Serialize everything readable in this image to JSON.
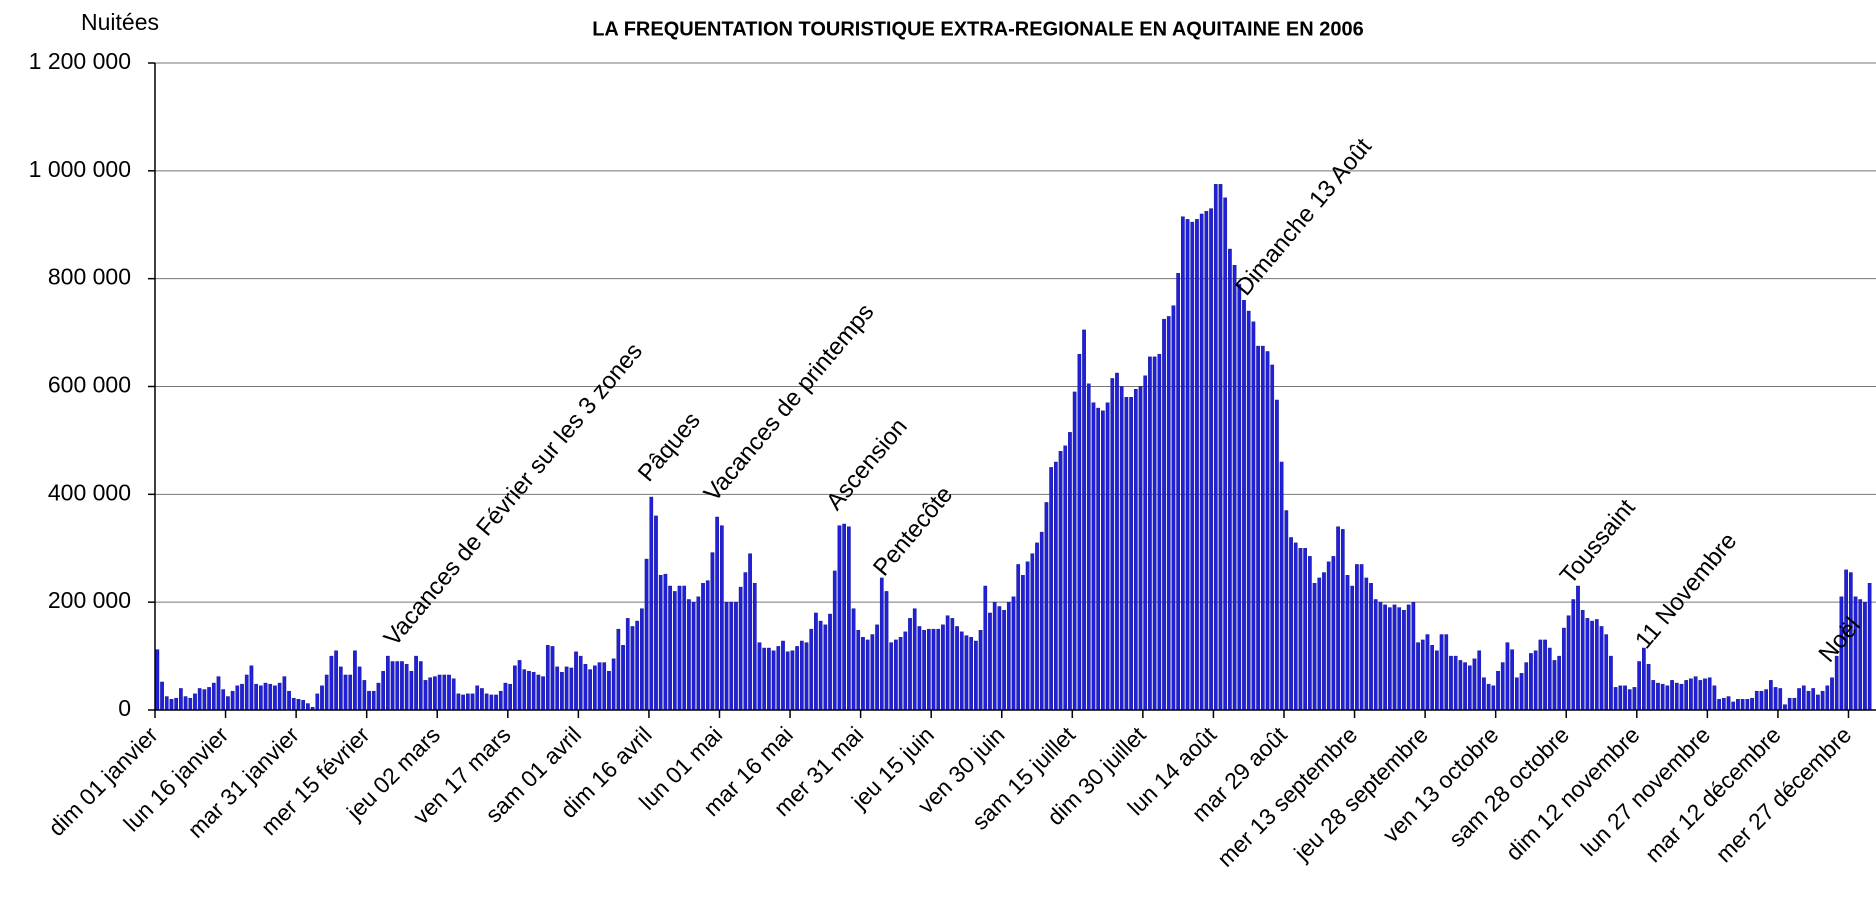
{
  "chart_data": {
    "type": "bar",
    "title": "LA FREQUENTATION TOURISTIQUE EXTRA-REGIONALE EN AQUITAINE EN 2006",
    "y_label": "Nuitées",
    "color": "#2020dc",
    "grid": true,
    "ylim": [
      0,
      1200000
    ],
    "yticks": [
      0,
      {
        "value": 200000,
        "label": "200 000"
      },
      {
        "value": 400000,
        "label": "400 000"
      },
      {
        "value": 600000,
        "label": "600 000"
      },
      {
        "value": 800000,
        "label": "800 000"
      },
      {
        "value": 1000000,
        "label": "1 000 000"
      },
      {
        "value": 1200000,
        "label": "1 200 000"
      }
    ],
    "annotations": [
      {
        "text": "Vacances de Février sur les 3 zones",
        "category_index": 51
      },
      {
        "text": "Pâques",
        "category_index": 105
      },
      {
        "text": "Vacances de printemps",
        "category_index": 119
      },
      {
        "text": "Ascension",
        "category_index": 145
      },
      {
        "text": "Pentecôte",
        "category_index": 155
      },
      {
        "text": "Dimanche 13 Août",
        "category_index": 232
      },
      {
        "text": "Toussaint",
        "category_index": 301
      },
      {
        "text": "11 Novembre",
        "category_index": 317
      },
      {
        "text": "Noël",
        "category_index": 356
      }
    ],
    "categories": [
      "dim 01 janvier",
      null,
      null,
      null,
      null,
      null,
      null,
      null,
      null,
      null,
      null,
      null,
      null,
      null,
      null,
      "lun 16 janvier",
      null,
      null,
      null,
      null,
      null,
      null,
      null,
      null,
      null,
      null,
      null,
      null,
      null,
      null,
      "mar 31 janvier",
      null,
      null,
      null,
      null,
      null,
      null,
      null,
      null,
      null,
      null,
      null,
      null,
      null,
      null,
      "mer 15 février",
      null,
      null,
      null,
      null,
      null,
      null,
      null,
      null,
      null,
      null,
      null,
      null,
      null,
      null,
      "jeu 02 mars",
      null,
      null,
      null,
      null,
      null,
      null,
      null,
      null,
      null,
      null,
      null,
      null,
      null,
      null,
      "ven 17 mars",
      null,
      null,
      null,
      null,
      null,
      null,
      null,
      null,
      null,
      null,
      null,
      null,
      null,
      null,
      "sam 01 avril",
      null,
      null,
      null,
      null,
      null,
      null,
      null,
      null,
      null,
      null,
      null,
      null,
      null,
      null,
      "dim 16 avril",
      null,
      null,
      null,
      null,
      null,
      null,
      null,
      null,
      null,
      null,
      null,
      null,
      null,
      null,
      "lun 01 mai",
      null,
      null,
      null,
      null,
      null,
      null,
      null,
      null,
      null,
      null,
      null,
      null,
      null,
      null,
      "mar 16 mai",
      null,
      null,
      null,
      null,
      null,
      null,
      null,
      null,
      null,
      null,
      null,
      null,
      null,
      null,
      "mer 31 mai",
      null,
      null,
      null,
      null,
      null,
      null,
      null,
      null,
      null,
      null,
      null,
      null,
      null,
      null,
      "jeu 15 juin",
      null,
      null,
      null,
      null,
      null,
      null,
      null,
      null,
      null,
      null,
      null,
      null,
      null,
      null,
      "ven 30 juin",
      null,
      null,
      null,
      null,
      null,
      null,
      null,
      null,
      null,
      null,
      null,
      null,
      null,
      null,
      "sam 15 juillet",
      null,
      null,
      null,
      null,
      null,
      null,
      null,
      null,
      null,
      null,
      null,
      null,
      null,
      null,
      "dim 30 juillet",
      null,
      null,
      null,
      null,
      null,
      null,
      null,
      null,
      null,
      null,
      null,
      null,
      null,
      null,
      "lun 14 août",
      null,
      null,
      null,
      null,
      null,
      null,
      null,
      null,
      null,
      null,
      null,
      null,
      null,
      null,
      "mar 29 août",
      null,
      null,
      null,
      null,
      null,
      null,
      null,
      null,
      null,
      null,
      null,
      null,
      null,
      null,
      "mer 13 septembre",
      null,
      null,
      null,
      null,
      null,
      null,
      null,
      null,
      null,
      null,
      null,
      null,
      null,
      null,
      "jeu 28 septembre",
      null,
      null,
      null,
      null,
      null,
      null,
      null,
      null,
      null,
      null,
      null,
      null,
      null,
      null,
      "ven 13 octobre",
      null,
      null,
      null,
      null,
      null,
      null,
      null,
      null,
      null,
      null,
      null,
      null,
      null,
      null,
      "sam 28 octobre",
      null,
      null,
      null,
      null,
      null,
      null,
      null,
      null,
      null,
      null,
      null,
      null,
      null,
      null,
      "dim 12 novembre",
      null,
      null,
      null,
      null,
      null,
      null,
      null,
      null,
      null,
      null,
      null,
      null,
      null,
      null,
      "lun 27 novembre",
      null,
      null,
      null,
      null,
      null,
      null,
      null,
      null,
      null,
      null,
      null,
      null,
      null,
      null,
      "mar 12 décembre",
      null,
      null,
      null,
      null,
      null,
      null,
      null,
      null,
      null,
      null,
      null,
      null,
      null,
      null,
      "mer 27 décembre",
      null,
      null,
      null,
      null
    ],
    "values": [
      112000,
      52000,
      25000,
      20000,
      22000,
      40000,
      25000,
      22000,
      30000,
      40000,
      38000,
      42000,
      50000,
      62000,
      38000,
      25000,
      35000,
      45000,
      48000,
      65000,
      82000,
      48000,
      45000,
      50000,
      48000,
      45000,
      50000,
      62000,
      35000,
      22000,
      20000,
      18000,
      12000,
      5000,
      30000,
      45000,
      65000,
      100000,
      110000,
      80000,
      65000,
      65000,
      110000,
      80000,
      55000,
      35000,
      35000,
      50000,
      72000,
      100000,
      90000,
      90000,
      90000,
      85000,
      72000,
      100000,
      90000,
      55000,
      60000,
      62000,
      65000,
      65000,
      65000,
      58000,
      30000,
      28000,
      30000,
      30000,
      45000,
      40000,
      30000,
      28000,
      28000,
      35000,
      50000,
      48000,
      82000,
      92000,
      75000,
      72000,
      70000,
      65000,
      62000,
      120000,
      118000,
      80000,
      70000,
      80000,
      78000,
      108000,
      100000,
      85000,
      75000,
      82000,
      88000,
      88000,
      72000,
      95000,
      150000,
      120000,
      170000,
      155000,
      165000,
      188000,
      280000,
      395000,
      360000,
      250000,
      252000,
      230000,
      220000,
      230000,
      230000,
      205000,
      200000,
      210000,
      235000,
      240000,
      292000,
      358000,
      342000,
      200000,
      200000,
      200000,
      228000,
      255000,
      290000,
      235000,
      125000,
      115000,
      115000,
      110000,
      118000,
      128000,
      108000,
      110000,
      118000,
      128000,
      125000,
      150000,
      180000,
      165000,
      158000,
      178000,
      258000,
      342000,
      345000,
      340000,
      188000,
      148000,
      135000,
      130000,
      140000,
      158000,
      245000,
      220000,
      125000,
      130000,
      135000,
      145000,
      170000,
      188000,
      155000,
      148000,
      150000,
      150000,
      150000,
      158000,
      175000,
      170000,
      155000,
      145000,
      138000,
      135000,
      128000,
      148000,
      230000,
      180000,
      200000,
      192000,
      185000,
      200000,
      210000,
      270000,
      250000,
      275000,
      290000,
      310000,
      330000,
      385000,
      450000,
      460000,
      480000,
      490000,
      515000,
      590000,
      660000,
      705000,
      605000,
      570000,
      560000,
      555000,
      570000,
      615000,
      625000,
      600000,
      580000,
      580000,
      595000,
      600000,
      620000,
      655000,
      655000,
      660000,
      725000,
      730000,
      750000,
      810000,
      915000,
      910000,
      905000,
      910000,
      920000,
      925000,
      930000,
      975000,
      975000,
      950000,
      855000,
      825000,
      790000,
      760000,
      740000,
      720000,
      675000,
      675000,
      665000,
      640000,
      575000,
      460000,
      370000,
      320000,
      310000,
      300000,
      300000,
      285000,
      235000,
      245000,
      255000,
      275000,
      285000,
      340000,
      335000,
      250000,
      230000,
      270000,
      270000,
      245000,
      235000,
      205000,
      200000,
      195000,
      190000,
      195000,
      190000,
      185000,
      195000,
      200000,
      125000,
      130000,
      140000,
      120000,
      110000,
      140000,
      140000,
      100000,
      100000,
      92000,
      88000,
      82000,
      95000,
      110000,
      60000,
      48000,
      45000,
      72000,
      88000,
      125000,
      112000,
      60000,
      68000,
      88000,
      105000,
      110000,
      130000,
      130000,
      115000,
      92000,
      100000,
      152000,
      175000,
      205000,
      230000,
      185000,
      170000,
      165000,
      168000,
      155000,
      140000,
      100000,
      42000,
      45000,
      45000,
      38000,
      42000,
      90000,
      115000,
      85000,
      55000,
      50000,
      48000,
      45000,
      55000,
      50000,
      48000,
      55000,
      58000,
      62000,
      55000,
      58000,
      60000,
      45000,
      20000,
      22000,
      25000,
      15000,
      20000,
      20000,
      20000,
      22000,
      35000,
      35000,
      38000,
      55000,
      42000,
      40000,
      10000,
      22000,
      22000,
      40000,
      45000,
      35000,
      40000,
      28000,
      35000,
      45000,
      60000,
      100000,
      210000,
      260000,
      255000,
      210000,
      205000,
      200000,
      235000
    ]
  }
}
